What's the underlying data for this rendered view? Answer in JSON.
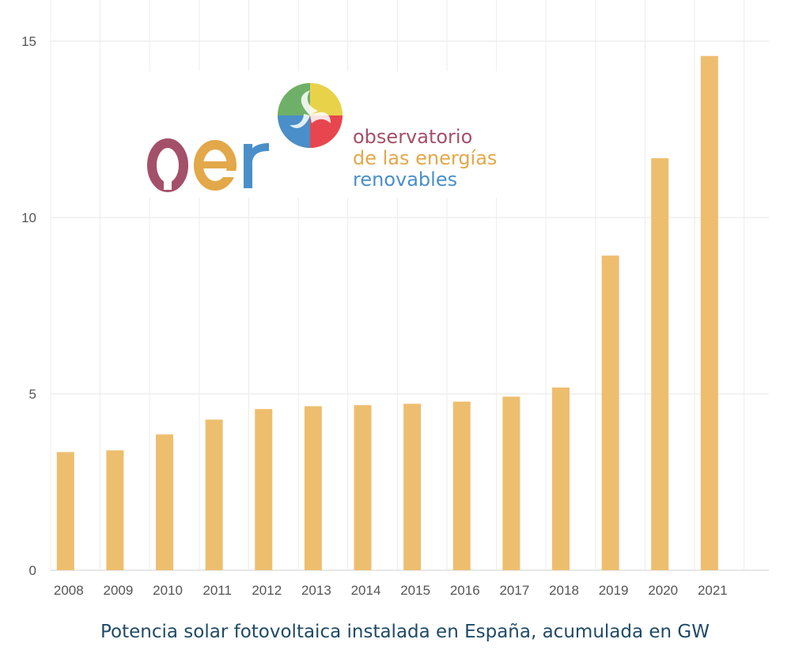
{
  "chart_data": {
    "type": "bar",
    "categories": [
      "2008",
      "2009",
      "2010",
      "2011",
      "2012",
      "2013",
      "2014",
      "2015",
      "2016",
      "2017",
      "2018",
      "2019",
      "2020",
      "2021"
    ],
    "values": [
      3.35,
      3.4,
      3.85,
      4.27,
      4.57,
      4.65,
      4.68,
      4.72,
      4.78,
      4.92,
      5.18,
      8.92,
      11.68,
      14.58
    ],
    "ylim": [
      0,
      15
    ],
    "yticks": [
      0,
      5,
      10,
      15
    ],
    "grid": true,
    "bar_color": "#eebe6f",
    "title": "",
    "xlabel": "",
    "ylabel": ""
  },
  "caption": "Potencia solar fotovoltaica instalada en España, acumulada en GW",
  "logo": {
    "wordmark": "oer",
    "line1": "observatorio",
    "line2": "de las energías",
    "line3": "renovables",
    "colors": {
      "line1": "#a4506a",
      "line2": "#e2a84a",
      "line3": "#4a8fc9"
    }
  }
}
